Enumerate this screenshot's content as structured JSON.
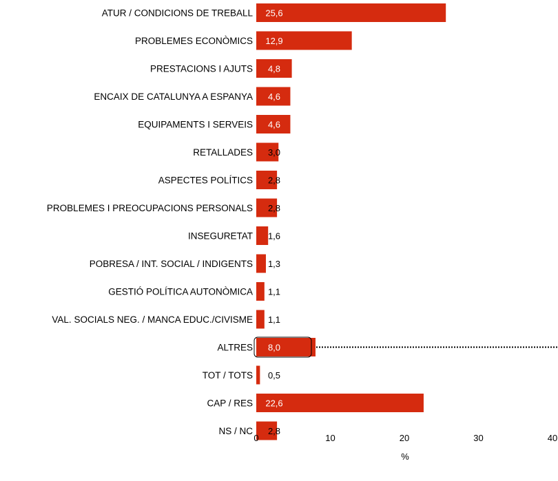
{
  "chart_data": {
    "type": "bar",
    "orientation": "horizontal",
    "categories": [
      "ATUR / CONDICIONS DE TREBALL",
      "PROBLEMES ECONÒMICS",
      "PRESTACIONS I AJUTS",
      "ENCAIX DE CATALUNYA A ESPANYA",
      "EQUIPAMENTS I SERVEIS",
      "RETALLADES",
      "ASPECTES POLÍTICS",
      "PROBLEMES I PREOCUPACIONS PERSONALS",
      "INSEGURETAT",
      "POBRESA / INT. SOCIAL / INDIGENTS",
      "GESTIÓ POLÍTICA AUTONÒMICA",
      "VAL. SOCIALS NEG. / MANCA EDUC./CIVISME",
      "ALTRES",
      "TOT / TOTS",
      "CAP / RES",
      "NS / NC"
    ],
    "values": [
      25.6,
      12.9,
      4.8,
      4.6,
      4.6,
      3.0,
      2.8,
      2.8,
      1.6,
      1.3,
      1.1,
      1.1,
      8.0,
      0.5,
      22.6,
      2.8
    ],
    "value_labels": [
      "25,6",
      "12,9",
      "4,8",
      "4,6",
      "4,6",
      "3,0",
      "2,8",
      "2,8",
      "1,6",
      "1,3",
      "1,1",
      "1,1",
      "8,0",
      "0,5",
      "22,6",
      "2,8"
    ],
    "xlabel": "%",
    "ylabel": "",
    "title": "",
    "xlim": [
      0,
      40
    ],
    "xticks": [
      "0",
      "10",
      "20",
      "30",
      "40"
    ],
    "xtick_values": [
      0,
      10,
      20,
      30,
      40
    ],
    "grid": false,
    "legend": "none",
    "highlighted_category": "ALTRES",
    "highlight_has_leader_line": true,
    "colors": {
      "bar": "#d52b0f",
      "label_inside": "#ffffff",
      "label_outside": "#000000",
      "highlight_box": "#000000"
    }
  }
}
